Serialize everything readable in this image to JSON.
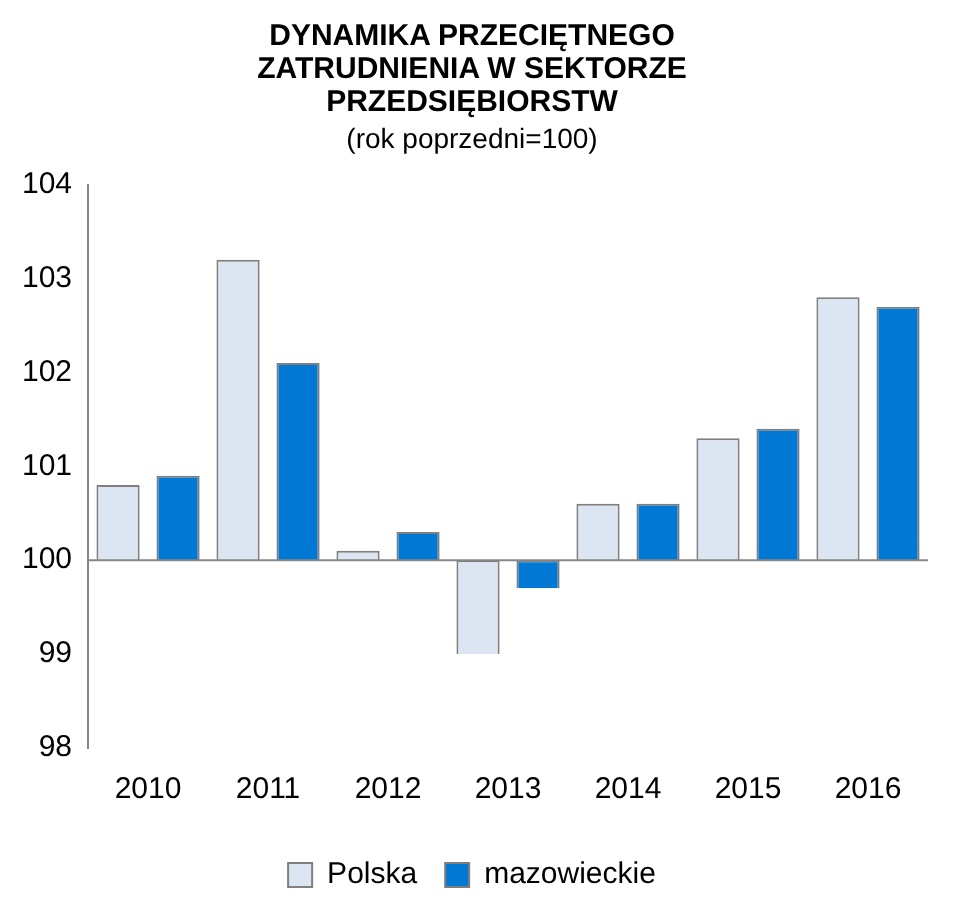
{
  "chart_data": {
    "type": "bar",
    "title": "DYNAMIKA PRZECIĘTNEGO ZATRUDNIENIA W SEKTORZE PRZEDSIĘBIORSTW",
    "subtitle": "(rok poprzedni=100)",
    "categories": [
      "2010",
      "2011",
      "2012",
      "2013",
      "2014",
      "2015",
      "2016"
    ],
    "series": [
      {
        "name": "Polska",
        "color": "#dce6f2",
        "base": [
          100,
          100,
          100,
          100,
          100,
          100,
          100
        ],
        "values": [
          0.8,
          3.2,
          0.1,
          -1.0,
          0.6,
          1.3,
          2.8
        ]
      },
      {
        "name": "mazowieckie",
        "color": "#0078d4",
        "base": [
          100,
          100,
          100,
          100,
          100,
          100,
          100
        ],
        "values": [
          0.9,
          2.1,
          0.3,
          -0.3,
          0.6,
          1.4,
          2.7
        ]
      }
    ],
    "ref_lines": [
      {
        "axis": "y",
        "value": 100,
        "color": "#868686"
      }
    ],
    "ylim": [
      98,
      104
    ],
    "yticks": [
      98,
      99,
      100,
      101,
      102,
      103,
      104
    ],
    "grid": false,
    "legend": "bottom"
  }
}
